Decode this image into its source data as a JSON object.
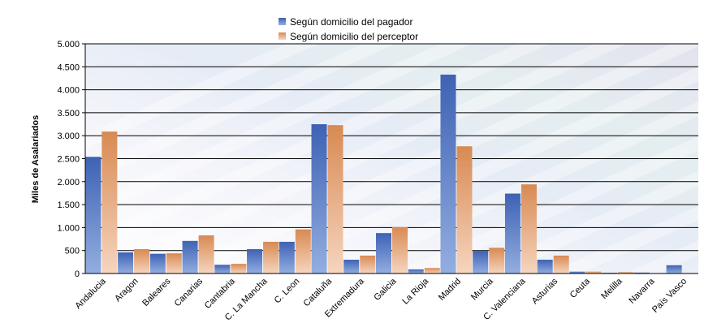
{
  "chart_data": {
    "type": "bar",
    "title": "",
    "xlabel": "",
    "ylabel": "Miles de Asalariados",
    "ylim": [
      0,
      5000
    ],
    "yticks": [
      0,
      500,
      1000,
      1500,
      2000,
      2500,
      3000,
      3500,
      4000,
      4500,
      5000
    ],
    "ytick_labels": [
      "0",
      "500",
      "1.000",
      "1.500",
      "2.000",
      "2.500",
      "3.000",
      "3.500",
      "4.000",
      "4.500",
      "5.000"
    ],
    "grid": true,
    "legend_position": "top-center",
    "categories": [
      "Andalucia",
      "Aragon",
      "Baleares",
      "Canarias",
      "Cantabria",
      "C. La Mancha",
      "C. Leon",
      "Cataluña",
      "Extremadura",
      "Galicia",
      "La Rioja",
      "Madrid",
      "Murcia",
      "C. Valenciana",
      "Asturias",
      "Ceuta",
      "Melilla",
      "Navarra",
      "País Vasco"
    ],
    "series": [
      {
        "name": "Según domicilio del pagador",
        "color_top": "#3e62b4",
        "color_bottom": "#93aee0",
        "values": [
          2540,
          460,
          430,
          710,
          190,
          530,
          690,
          3250,
          300,
          880,
          90,
          4330,
          490,
          1740,
          300,
          40,
          15,
          20,
          180
        ]
      },
      {
        "name": "Según domicilio del perceptor",
        "color_top": "#d88a52",
        "color_bottom": "#f6d5bf",
        "values": [
          3090,
          530,
          440,
          830,
          210,
          690,
          960,
          3230,
          390,
          1010,
          120,
          2770,
          560,
          1940,
          390,
          40,
          30,
          0,
          0
        ]
      }
    ]
  }
}
